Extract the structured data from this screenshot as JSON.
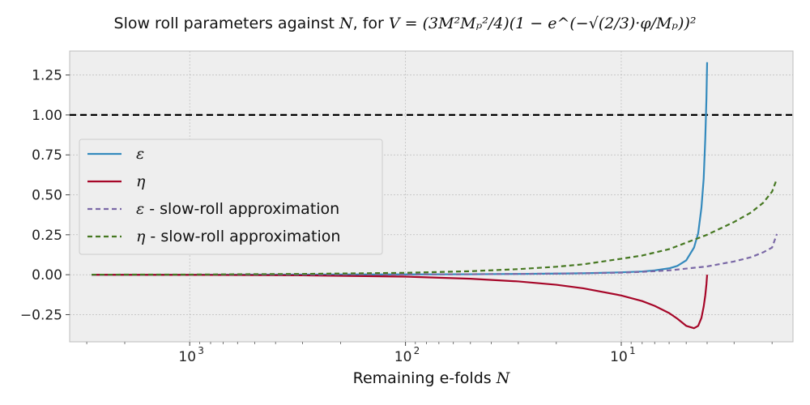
{
  "chart_data": {
    "type": "line",
    "title": {
      "prefix": "Slow roll parameters against ",
      "var": "N",
      "mid": ", for ",
      "formula": "V = (3M²Mₚ²/4)(1 − e^(−√(2/3)·φ/Mₚ))²"
    },
    "xlabel": {
      "text": "Remaining e-folds ",
      "var": "N"
    },
    "ylabel": "",
    "x_axis": {
      "scale": "log",
      "reversed": true,
      "xlim": [
        3600,
        1.6
      ],
      "major_ticks": [
        1000,
        100,
        10
      ],
      "major_labels": [
        "10",
        "10",
        "10"
      ],
      "major_exps": [
        "3",
        "2",
        "1"
      ]
    },
    "y_axis": {
      "ylim": [
        -0.42,
        1.4
      ],
      "ticks": [
        -0.25,
        0.0,
        0.25,
        0.5,
        0.75,
        1.0,
        1.25
      ],
      "tick_labels": [
        "−0.25",
        "0.00",
        "0.25",
        "0.50",
        "0.75",
        "1.00",
        "1.25"
      ]
    },
    "reference_line": {
      "y": 1.0,
      "style": "dashed",
      "color": "#000000"
    },
    "grid": true,
    "legend": {
      "placement": "center-left"
    },
    "series": [
      {
        "name": "ε",
        "label_suffix": "",
        "style": "solid",
        "color": "#348ABD",
        "x": [
          2850,
          1000,
          300,
          100,
          50,
          30,
          20,
          15,
          10,
          8,
          7,
          6,
          5.5,
          5.0,
          4.6,
          4.4,
          4.25,
          4.15,
          4.08,
          4.03,
          4.0
        ],
        "y": [
          0.0001,
          0.0003,
          0.0008,
          0.002,
          0.003,
          0.005,
          0.007,
          0.009,
          0.015,
          0.02,
          0.027,
          0.04,
          0.055,
          0.09,
          0.17,
          0.26,
          0.42,
          0.6,
          0.85,
          1.1,
          1.33
        ]
      },
      {
        "name": "η",
        "label_suffix": "",
        "style": "solid",
        "color": "#A60628",
        "x": [
          2850,
          1000,
          300,
          100,
          50,
          30,
          20,
          15,
          10,
          8,
          7,
          6,
          5.5,
          5.0,
          4.6,
          4.4,
          4.25,
          4.15,
          4.08,
          4.03,
          4.0
        ],
        "y": [
          -0.0004,
          -0.001,
          -0.004,
          -0.012,
          -0.025,
          -0.042,
          -0.063,
          -0.085,
          -0.13,
          -0.165,
          -0.195,
          -0.24,
          -0.275,
          -0.32,
          -0.335,
          -0.32,
          -0.27,
          -0.2,
          -0.13,
          -0.06,
          0.0
        ]
      },
      {
        "name": "ε",
        "label_suffix": " - slow-roll approximation",
        "style": "dashed",
        "color": "#7A68A6",
        "x": [
          2850,
          1000,
          300,
          100,
          50,
          30,
          20,
          15,
          10,
          8,
          6,
          4,
          3,
          2.5,
          2.2,
          2.0,
          1.9
        ],
        "y": [
          0.0001,
          0.0003,
          0.0008,
          0.002,
          0.003,
          0.005,
          0.007,
          0.009,
          0.013,
          0.018,
          0.027,
          0.052,
          0.083,
          0.11,
          0.14,
          0.17,
          0.255
        ]
      },
      {
        "name": "η",
        "label_suffix": " - slow-roll approximation",
        "style": "dashed",
        "color": "#467821",
        "x": [
          2850,
          1000,
          300,
          100,
          50,
          30,
          20,
          15,
          10,
          8,
          6,
          4,
          3,
          2.5,
          2.2,
          2.0,
          1.9
        ],
        "y": [
          0.0004,
          0.001,
          0.005,
          0.012,
          0.022,
          0.035,
          0.05,
          0.065,
          0.1,
          0.12,
          0.16,
          0.25,
          0.33,
          0.39,
          0.45,
          0.52,
          0.6
        ]
      }
    ]
  }
}
